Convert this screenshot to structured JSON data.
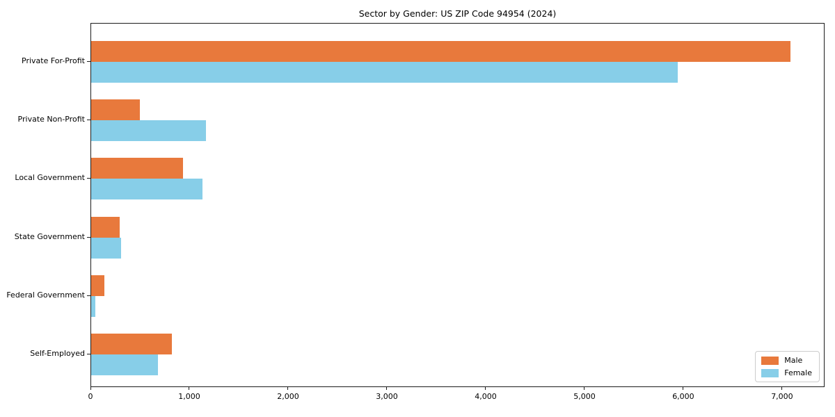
{
  "chart_data": {
    "type": "bar",
    "orientation": "horizontal",
    "title": "Sector by Gender: US ZIP Code 94954 (2024)",
    "categories": [
      "Private For-Profit",
      "Private Non-Profit",
      "Local Government",
      "State Government",
      "Federal Government",
      "Self-Employed"
    ],
    "series": [
      {
        "name": "Male",
        "color": "#E8793C",
        "values": [
          7080,
          490,
          930,
          290,
          130,
          815
        ]
      },
      {
        "name": "Female",
        "color": "#87CEE8",
        "values": [
          5940,
          1165,
          1125,
          300,
          40,
          675
        ]
      }
    ],
    "xlabel": "",
    "ylabel": "",
    "xlim": [
      0,
      7430
    ],
    "x_ticks": [
      0,
      1000,
      2000,
      3000,
      4000,
      5000,
      6000,
      7000
    ],
    "x_tick_labels": [
      "0",
      "1,000",
      "2,000",
      "3,000",
      "4,000",
      "5,000",
      "6,000",
      "7,000"
    ],
    "grid": false,
    "legend_position": "lower right",
    "plot_border_color": "#1a1a1a",
    "background_color": "#ffffff"
  }
}
